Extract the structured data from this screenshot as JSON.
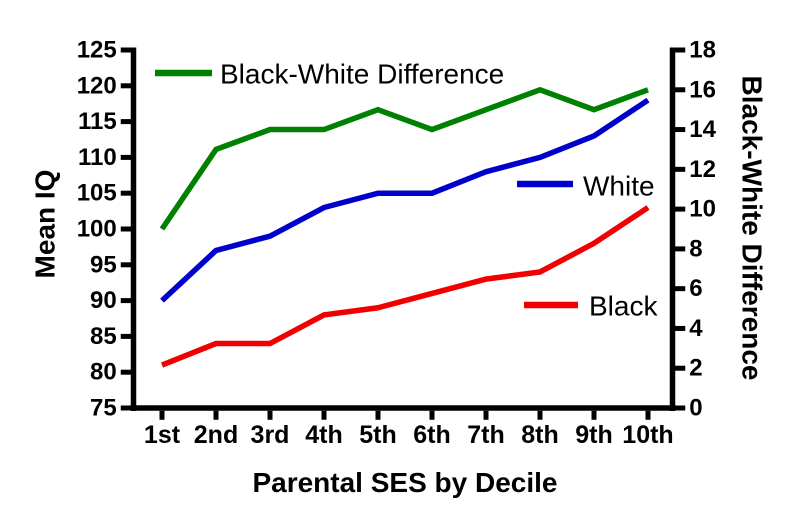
{
  "chart_data": {
    "type": "line",
    "title": "",
    "categories": [
      "1st",
      "2nd",
      "3rd",
      "4th",
      "5th",
      "6th",
      "7th",
      "8th",
      "9th",
      "10th"
    ],
    "xlabel": "Parental SES by Decile",
    "axes": {
      "left": {
        "label": "Mean IQ",
        "min": 75,
        "max": 125,
        "tick_step": 5,
        "ticks": [
          75,
          80,
          85,
          90,
          95,
          100,
          105,
          110,
          115,
          120,
          125
        ]
      },
      "right": {
        "label": "Black-White Difference",
        "min": 0,
        "max": 18,
        "tick_step": 2,
        "ticks": [
          0,
          2,
          4,
          6,
          8,
          10,
          12,
          14,
          16,
          18
        ]
      }
    },
    "grid": false,
    "background_color": "#ffffff",
    "axis_color": "#000000",
    "text_color": "#000000",
    "series": [
      {
        "name": "Black-White Difference",
        "axis": "right",
        "color": "#008000",
        "values": [
          9,
          13,
          14,
          14,
          15,
          14,
          15,
          16,
          15,
          16
        ]
      },
      {
        "name": "White",
        "axis": "left",
        "color": "#0000cc",
        "values": [
          90,
          97,
          99,
          103,
          105,
          105,
          108,
          110,
          113,
          118
        ]
      },
      {
        "name": "Black",
        "axis": "left",
        "color": "#f00000",
        "values": [
          81,
          84,
          84,
          88,
          89,
          91,
          93,
          94,
          98,
          103
        ]
      }
    ],
    "legend": {
      "style": "inline-line-swatches",
      "entries": [
        "Black-White Difference",
        "White",
        "Black"
      ]
    }
  }
}
